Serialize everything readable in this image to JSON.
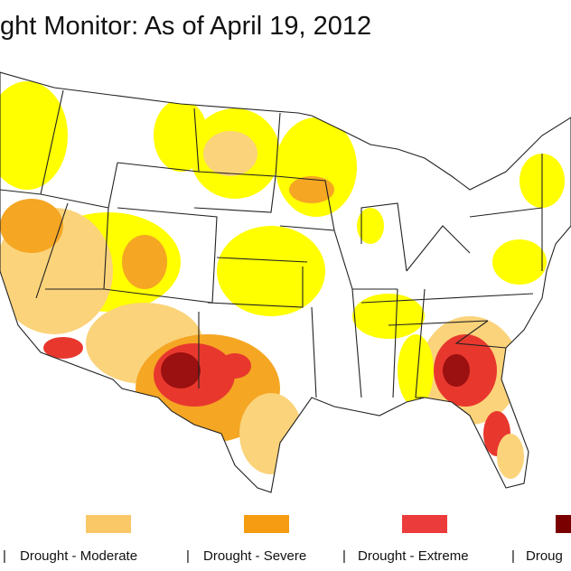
{
  "header": {
    "title": "ght Monitor: As of April 19, 2012"
  },
  "legend": {
    "separator": "|",
    "items": [
      {
        "label": "Drought - Moderate",
        "color": "#fbc867"
      },
      {
        "label": "Drought - Severe",
        "color": "#f59c12"
      },
      {
        "label": "Drought - Extreme",
        "color": "#ec3b3b"
      },
      {
        "label": "Droug",
        "color": "#7a0000"
      }
    ]
  }
}
